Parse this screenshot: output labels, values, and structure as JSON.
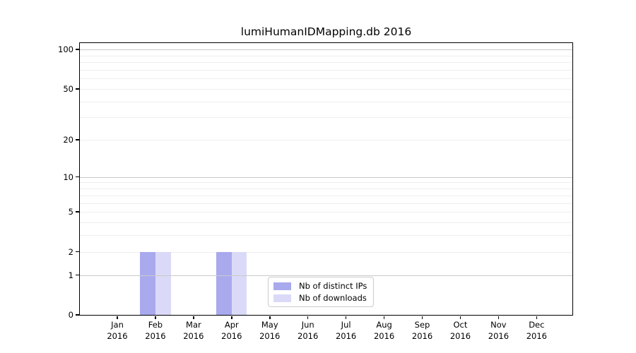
{
  "figure": {
    "background": "#ffffff"
  },
  "chart_data": {
    "type": "bar",
    "title": "lumiHumanIDMapping.db 2016",
    "x_months": [
      "Jan",
      "Feb",
      "Mar",
      "Apr",
      "May",
      "Jun",
      "Jul",
      "Aug",
      "Sep",
      "Oct",
      "Nov",
      "Dec"
    ],
    "x_year": "2016",
    "series": [
      {
        "name": "Nb of distinct IPs",
        "color": "#a9a9ee",
        "values": [
          0,
          2,
          0,
          2,
          0,
          0,
          0,
          0,
          0,
          0,
          0,
          0
        ]
      },
      {
        "name": "Nb of downloads",
        "color": "#dadaf8",
        "values": [
          0,
          2,
          0,
          2,
          0,
          0,
          0,
          0,
          0,
          0,
          0,
          0
        ]
      }
    ],
    "y_axis": {
      "scale": "log1p",
      "ylim": [
        0,
        112
      ],
      "tick_values": [
        0,
        1,
        2,
        5,
        10,
        20,
        50,
        100
      ],
      "major_grid_values": [
        1,
        10,
        100
      ],
      "minor_grid_values": [
        2,
        3,
        4,
        5,
        6,
        7,
        8,
        9,
        20,
        30,
        40,
        50,
        60,
        70,
        80,
        90
      ]
    },
    "legend": {
      "position": "lower center"
    },
    "grid": true,
    "colors": {
      "major_grid": "#c9c9c9",
      "minor_grid": "#eeeeee",
      "spine": "#000000",
      "text": "#000000"
    }
  }
}
